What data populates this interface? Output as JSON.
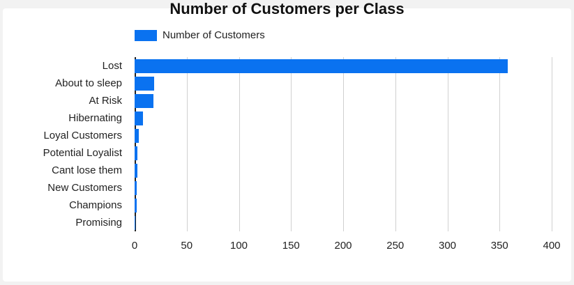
{
  "chart_data": {
    "type": "bar",
    "orientation": "horizontal",
    "title": "Number of Customers per Class",
    "legend": [
      "Number of Customers"
    ],
    "legend_position": "top",
    "categories": [
      "Lost",
      "About to sleep",
      "At Risk",
      "Hibernating",
      "Loyal Customers",
      "Potential Loyalist",
      "Cant lose them",
      "New Customers",
      "Champions",
      "Promising"
    ],
    "series": [
      {
        "name": "Number of Customers",
        "values": [
          358,
          19,
          18,
          8,
          4,
          3,
          3,
          2,
          2,
          1
        ],
        "color": "#0a72f0"
      }
    ],
    "xlim": [
      0,
      400
    ],
    "xticks": [
      "0",
      "50",
      "100",
      "150",
      "200",
      "250",
      "300",
      "350",
      "400"
    ],
    "grid": true
  }
}
